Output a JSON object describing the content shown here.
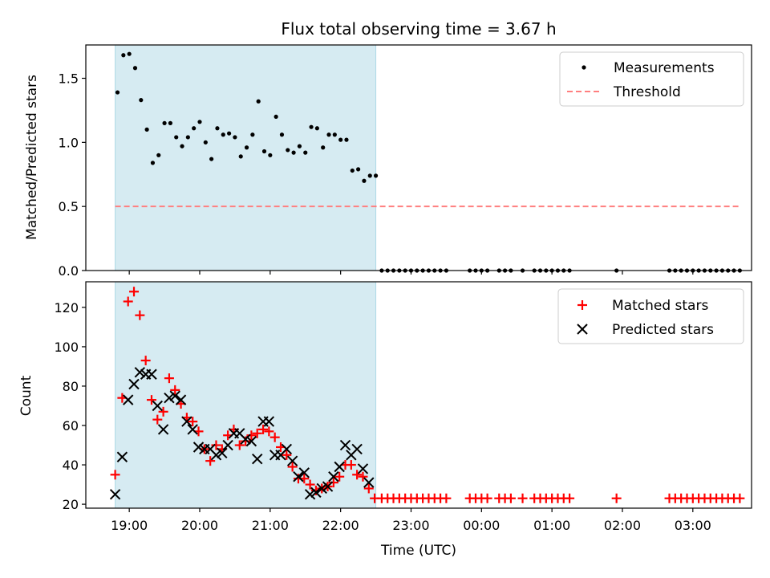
{
  "chart_data": [
    {
      "type": "scatter",
      "title": "Flux total observing time = 3.67 h",
      "xlabel": "",
      "ylabel": "Matched/Predicted stars",
      "ylim": [
        0,
        1.76
      ],
      "yticks": [
        "0.0",
        "0.5",
        "1.0",
        "1.5"
      ],
      "ytick_values": [
        0,
        0.5,
        1.0,
        1.5
      ],
      "shaded_span": [
        "18:48",
        "22:30"
      ],
      "legend_position": "top-right",
      "series": [
        {
          "name": "Measurements",
          "marker": "dot",
          "color": "#000000",
          "points": [
            [
              "18:50",
              1.39
            ],
            [
              "18:55",
              1.68
            ],
            [
              "19:00",
              1.69
            ],
            [
              "19:05",
              1.58
            ],
            [
              "19:10",
              1.33
            ],
            [
              "19:15",
              1.1
            ],
            [
              "19:20",
              0.84
            ],
            [
              "19:25",
              0.9
            ],
            [
              "19:30",
              1.15
            ],
            [
              "19:35",
              1.15
            ],
            [
              "19:40",
              1.04
            ],
            [
              "19:45",
              0.97
            ],
            [
              "19:50",
              1.04
            ],
            [
              "19:55",
              1.11
            ],
            [
              "20:00",
              1.16
            ],
            [
              "20:05",
              1.0
            ],
            [
              "20:10",
              0.87
            ],
            [
              "20:15",
              1.11
            ],
            [
              "20:20",
              1.06
            ],
            [
              "20:25",
              1.07
            ],
            [
              "20:30",
              1.04
            ],
            [
              "20:35",
              0.89
            ],
            [
              "20:40",
              0.96
            ],
            [
              "20:45",
              1.06
            ],
            [
              "20:50",
              1.32
            ],
            [
              "20:55",
              0.93
            ],
            [
              "21:00",
              0.9
            ],
            [
              "21:05",
              1.2
            ],
            [
              "21:10",
              1.06
            ],
            [
              "21:15",
              0.94
            ],
            [
              "21:20",
              0.92
            ],
            [
              "21:25",
              0.97
            ],
            [
              "21:30",
              0.92
            ],
            [
              "21:35",
              1.12
            ],
            [
              "21:40",
              1.11
            ],
            [
              "21:45",
              0.96
            ],
            [
              "21:50",
              1.06
            ],
            [
              "21:55",
              1.06
            ],
            [
              "22:00",
              1.02
            ],
            [
              "22:05",
              1.02
            ],
            [
              "22:10",
              0.78
            ],
            [
              "22:15",
              0.79
            ],
            [
              "22:20",
              0.7
            ],
            [
              "22:25",
              0.74
            ],
            [
              "22:30",
              0.74
            ],
            [
              "22:35",
              0
            ],
            [
              "22:40",
              0
            ],
            [
              "22:45",
              0
            ],
            [
              "22:50",
              0
            ],
            [
              "22:55",
              0
            ],
            [
              "23:00",
              0
            ],
            [
              "23:05",
              0
            ],
            [
              "23:10",
              0
            ],
            [
              "23:15",
              0
            ],
            [
              "23:20",
              0
            ],
            [
              "23:25",
              0
            ],
            [
              "23:30",
              0
            ],
            [
              "23:50",
              0
            ],
            [
              "23:55",
              0
            ],
            [
              "00:00",
              0
            ],
            [
              "00:05",
              0
            ],
            [
              "00:15",
              0
            ],
            [
              "00:20",
              0
            ],
            [
              "00:25",
              0
            ],
            [
              "00:35",
              0
            ],
            [
              "00:45",
              0
            ],
            [
              "00:50",
              0
            ],
            [
              "00:55",
              0
            ],
            [
              "01:00",
              0
            ],
            [
              "01:05",
              0
            ],
            [
              "01:10",
              0
            ],
            [
              "01:15",
              0
            ],
            [
              "01:55",
              0
            ],
            [
              "02:40",
              0
            ],
            [
              "02:45",
              0
            ],
            [
              "02:50",
              0
            ],
            [
              "02:55",
              0
            ],
            [
              "03:00",
              0
            ],
            [
              "03:05",
              0
            ],
            [
              "03:10",
              0
            ],
            [
              "03:15",
              0
            ],
            [
              "03:20",
              0
            ],
            [
              "03:25",
              0
            ],
            [
              "03:30",
              0
            ],
            [
              "03:35",
              0
            ],
            [
              "03:40",
              0
            ]
          ]
        },
        {
          "name": "Threshold",
          "marker": "dashed-line",
          "color": "#ff7f7f",
          "points": [
            [
              "18:48",
              0.5
            ],
            [
              "03:40",
              0.5
            ]
          ]
        }
      ]
    },
    {
      "type": "scatter",
      "title": "",
      "xlabel": "Time (UTC)",
      "ylabel": "Count",
      "ylim": [
        18,
        133
      ],
      "yticks": [
        "20",
        "40",
        "60",
        "80",
        "100",
        "120"
      ],
      "ytick_values": [
        20,
        40,
        60,
        80,
        100,
        120
      ],
      "xticks": [
        "19:00",
        "20:00",
        "21:00",
        "22:00",
        "23:00",
        "00:00",
        "01:00",
        "02:00",
        "03:00"
      ],
      "xtick_values": [
        "19:00",
        "20:00",
        "21:00",
        "22:00",
        "23:00",
        "00:00",
        "01:00",
        "02:00",
        "03:00"
      ],
      "xlim": [
        "18:23",
        "03:50"
      ],
      "shaded_span": [
        "18:48",
        "22:30"
      ],
      "legend_position": "top-right",
      "series": [
        {
          "name": "Matched stars",
          "marker": "plus",
          "color": "#ff0000",
          "points": [
            [
              "18:48",
              35
            ],
            [
              "18:54",
              74
            ],
            [
              "18:59",
              123
            ],
            [
              "19:04",
              128
            ],
            [
              "19:09",
              116
            ],
            [
              "19:14",
              93
            ],
            [
              "19:19",
              73
            ],
            [
              "19:24",
              63
            ],
            [
              "19:29",
              67
            ],
            [
              "19:34",
              84
            ],
            [
              "19:39",
              78
            ],
            [
              "19:44",
              71
            ],
            [
              "19:49",
              64
            ],
            [
              "19:54",
              62
            ],
            [
              "19:59",
              57
            ],
            [
              "20:04",
              48
            ],
            [
              "20:09",
              42
            ],
            [
              "20:14",
              50
            ],
            [
              "20:19",
              48
            ],
            [
              "20:24",
              55
            ],
            [
              "20:29",
              58
            ],
            [
              "20:34",
              50
            ],
            [
              "20:39",
              52
            ],
            [
              "20:44",
              55
            ],
            [
              "20:49",
              56
            ],
            [
              "20:54",
              58
            ],
            [
              "20:59",
              57
            ],
            [
              "21:04",
              54
            ],
            [
              "21:09",
              49
            ],
            [
              "21:14",
              45
            ],
            [
              "21:19",
              39
            ],
            [
              "21:24",
              33
            ],
            [
              "21:29",
              33
            ],
            [
              "21:34",
              30
            ],
            [
              "21:39",
              27
            ],
            [
              "21:44",
              28
            ],
            [
              "21:49",
              29
            ],
            [
              "21:54",
              31
            ],
            [
              "21:59",
              34
            ],
            [
              "22:04",
              40
            ],
            [
              "22:09",
              40
            ],
            [
              "22:14",
              35
            ],
            [
              "22:19",
              34
            ],
            [
              "22:24",
              28
            ],
            [
              "22:29",
              23
            ],
            [
              "22:35",
              23
            ],
            [
              "22:40",
              23
            ],
            [
              "22:45",
              23
            ],
            [
              "22:50",
              23
            ],
            [
              "22:55",
              23
            ],
            [
              "23:00",
              23
            ],
            [
              "23:05",
              23
            ],
            [
              "23:10",
              23
            ],
            [
              "23:15",
              23
            ],
            [
              "23:20",
              23
            ],
            [
              "23:25",
              23
            ],
            [
              "23:30",
              23
            ],
            [
              "23:50",
              23
            ],
            [
              "23:55",
              23
            ],
            [
              "00:00",
              23
            ],
            [
              "00:05",
              23
            ],
            [
              "00:15",
              23
            ],
            [
              "00:20",
              23
            ],
            [
              "00:25",
              23
            ],
            [
              "00:35",
              23
            ],
            [
              "00:45",
              23
            ],
            [
              "00:50",
              23
            ],
            [
              "00:55",
              23
            ],
            [
              "01:00",
              23
            ],
            [
              "01:05",
              23
            ],
            [
              "01:10",
              23
            ],
            [
              "01:15",
              23
            ],
            [
              "01:55",
              23
            ],
            [
              "02:40",
              23
            ],
            [
              "02:45",
              23
            ],
            [
              "02:50",
              23
            ],
            [
              "02:55",
              23
            ],
            [
              "03:00",
              23
            ],
            [
              "03:05",
              23
            ],
            [
              "03:10",
              23
            ],
            [
              "03:15",
              23
            ],
            [
              "03:20",
              23
            ],
            [
              "03:25",
              23
            ],
            [
              "03:30",
              23
            ],
            [
              "03:35",
              23
            ],
            [
              "03:40",
              23
            ]
          ]
        },
        {
          "name": "Predicted stars",
          "marker": "x",
          "color": "#000000",
          "points": [
            [
              "18:48",
              25
            ],
            [
              "18:54",
              44
            ],
            [
              "18:59",
              73
            ],
            [
              "19:04",
              81
            ],
            [
              "19:09",
              87
            ],
            [
              "19:14",
              86
            ],
            [
              "19:19",
              86
            ],
            [
              "19:24",
              70
            ],
            [
              "19:29",
              58
            ],
            [
              "19:34",
              74
            ],
            [
              "19:39",
              75
            ],
            [
              "19:44",
              73
            ],
            [
              "19:49",
              62
            ],
            [
              "19:54",
              58
            ],
            [
              "19:59",
              49
            ],
            [
              "20:04",
              48
            ],
            [
              "20:09",
              48
            ],
            [
              "20:14",
              45
            ],
            [
              "20:19",
              46
            ],
            [
              "20:24",
              50
            ],
            [
              "20:29",
              56
            ],
            [
              "20:34",
              56
            ],
            [
              "20:39",
              53
            ],
            [
              "20:44",
              52
            ],
            [
              "20:49",
              43
            ],
            [
              "20:54",
              62
            ],
            [
              "20:59",
              62
            ],
            [
              "21:04",
              45
            ],
            [
              "21:09",
              45
            ],
            [
              "21:14",
              48
            ],
            [
              "21:19",
              42
            ],
            [
              "21:24",
              34
            ],
            [
              "21:29",
              36
            ],
            [
              "21:34",
              25
            ],
            [
              "21:39",
              26
            ],
            [
              "21:44",
              28
            ],
            [
              "21:49",
              29
            ],
            [
              "21:54",
              34
            ],
            [
              "21:59",
              39
            ],
            [
              "22:04",
              50
            ],
            [
              "22:09",
              45
            ],
            [
              "22:14",
              48
            ],
            [
              "22:19",
              38
            ],
            [
              "22:24",
              31
            ]
          ]
        }
      ]
    }
  ]
}
